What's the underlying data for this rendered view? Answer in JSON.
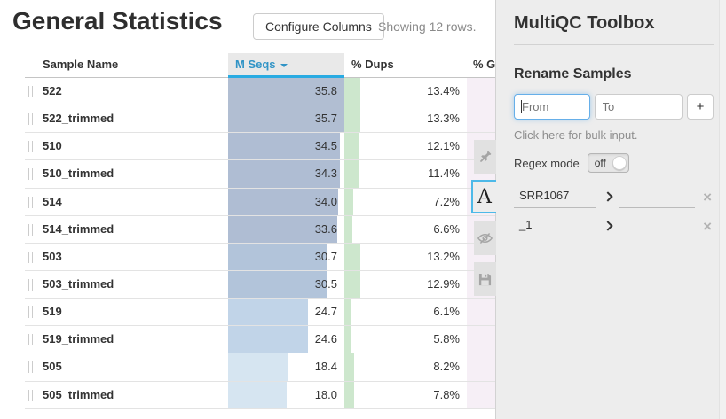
{
  "page": {
    "title": "General Statistics",
    "configure_columns_label": "Configure Columns",
    "showing_text": "Showing 12 rows."
  },
  "table": {
    "columns": [
      "Sample Name",
      "M Seqs",
      "% Dups",
      "% GC"
    ],
    "sort": {
      "column": "M Seqs",
      "direction": "descending"
    },
    "mseqs_scale_max": 35.8,
    "dups_scale_max": 100,
    "dups_bar_color": "#cde7cd",
    "gc_bar_color": "#f6eff6",
    "rows": [
      {
        "sample": "522",
        "mseqs": "35.8",
        "mseqs_val": 35.8,
        "dups": "13.4%",
        "dups_val": 13.4,
        "mseqs_bar_color": "#b1bed2"
      },
      {
        "sample": "522_trimmed",
        "mseqs": "35.7",
        "mseqs_val": 35.7,
        "dups": "13.3%",
        "dups_val": 13.3,
        "mseqs_bar_color": "#b1bed2"
      },
      {
        "sample": "510",
        "mseqs": "34.5",
        "mseqs_val": 34.5,
        "dups": "12.1%",
        "dups_val": 12.1,
        "mseqs_bar_color": "#afbdd3"
      },
      {
        "sample": "510_trimmed",
        "mseqs": "34.3",
        "mseqs_val": 34.3,
        "dups": "11.4%",
        "dups_val": 11.4,
        "mseqs_bar_color": "#afbdd3"
      },
      {
        "sample": "514",
        "mseqs": "34.0",
        "mseqs_val": 34.0,
        "dups": "7.2%",
        "dups_val": 7.2,
        "mseqs_bar_color": "#afbdd3"
      },
      {
        "sample": "514_trimmed",
        "mseqs": "33.6",
        "mseqs_val": 33.6,
        "dups": "6.6%",
        "dups_val": 6.6,
        "mseqs_bar_color": "#afbdd3"
      },
      {
        "sample": "503",
        "mseqs": "30.7",
        "mseqs_val": 30.7,
        "dups": "13.2%",
        "dups_val": 13.2,
        "mseqs_bar_color": "#b2c4da"
      },
      {
        "sample": "503_trimmed",
        "mseqs": "30.5",
        "mseqs_val": 30.5,
        "dups": "12.9%",
        "dups_val": 12.9,
        "mseqs_bar_color": "#b2c4da"
      },
      {
        "sample": "519",
        "mseqs": "24.7",
        "mseqs_val": 24.7,
        "dups": "6.1%",
        "dups_val": 6.1,
        "mseqs_bar_color": "#c1d4e8"
      },
      {
        "sample": "519_trimmed",
        "mseqs": "24.6",
        "mseqs_val": 24.6,
        "dups": "5.8%",
        "dups_val": 5.8,
        "mseqs_bar_color": "#c1d4e8"
      },
      {
        "sample": "505",
        "mseqs": "18.4",
        "mseqs_val": 18.4,
        "dups": "8.2%",
        "dups_val": 8.2,
        "mseqs_bar_color": "#d6e5f1"
      },
      {
        "sample": "505_trimmed",
        "mseqs": "18.0",
        "mseqs_val": 18.0,
        "dups": "7.8%",
        "dups_val": 7.8,
        "mseqs_bar_color": "#d6e5f1"
      }
    ]
  },
  "toolbox": {
    "title": "MultiQC Toolbox",
    "section_title": "Rename Samples",
    "from_placeholder": "From",
    "to_placeholder": "To",
    "add_button_label": "+",
    "bulk_link": "Click here for bulk input.",
    "regex_label": "Regex mode",
    "regex_state": "off",
    "patterns": [
      {
        "from": "SRR1067",
        "to": ""
      },
      {
        "from": "_1",
        "to": ""
      }
    ],
    "tabs": [
      {
        "name": "highlight-samples",
        "icon": "pushpin-icon",
        "active": false
      },
      {
        "name": "rename-samples",
        "icon": "letter-a-icon",
        "active": true,
        "glyph": "A"
      },
      {
        "name": "hide-samples",
        "icon": "eye-slash-icon",
        "active": false
      },
      {
        "name": "save-settings",
        "icon": "floppy-icon",
        "active": false
      }
    ],
    "colors": {
      "active_tab_border": "#4db9e8",
      "accent_blue": "#29abe2",
      "panel_bg": "#ededed"
    }
  }
}
